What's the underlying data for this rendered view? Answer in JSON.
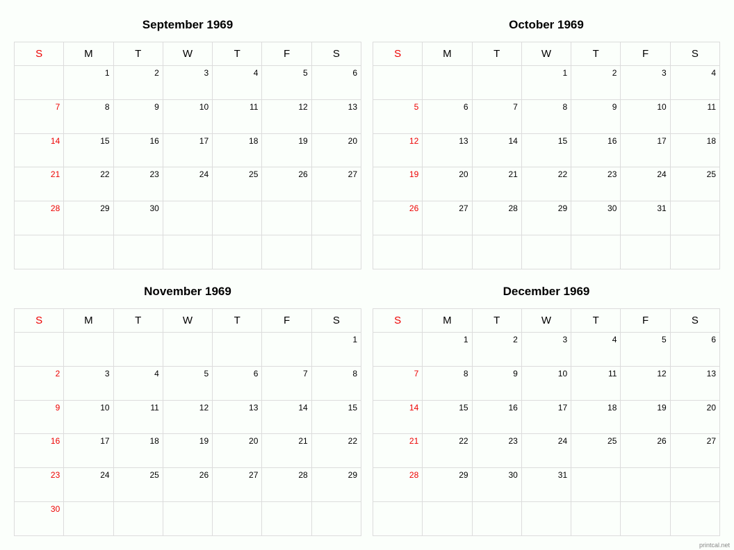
{
  "footer": "printcal.net",
  "dayHeaders": [
    "S",
    "M",
    "T",
    "W",
    "T",
    "F",
    "S"
  ],
  "colors": {
    "background": "#fbfffb",
    "border": "#dcdcdc",
    "text": "#000000",
    "sunday": "#ee0000",
    "footer": "#888888"
  },
  "months": [
    {
      "title": "September 1969",
      "weeks": [
        [
          "",
          "1",
          "2",
          "3",
          "4",
          "5",
          "6"
        ],
        [
          "7",
          "8",
          "9",
          "10",
          "11",
          "12",
          "13"
        ],
        [
          "14",
          "15",
          "16",
          "17",
          "18",
          "19",
          "20"
        ],
        [
          "21",
          "22",
          "23",
          "24",
          "25",
          "26",
          "27"
        ],
        [
          "28",
          "29",
          "30",
          "",
          "",
          "",
          ""
        ],
        [
          "",
          "",
          "",
          "",
          "",
          "",
          ""
        ]
      ]
    },
    {
      "title": "October 1969",
      "weeks": [
        [
          "",
          "",
          "",
          "1",
          "2",
          "3",
          "4"
        ],
        [
          "5",
          "6",
          "7",
          "8",
          "9",
          "10",
          "11"
        ],
        [
          "12",
          "13",
          "14",
          "15",
          "16",
          "17",
          "18"
        ],
        [
          "19",
          "20",
          "21",
          "22",
          "23",
          "24",
          "25"
        ],
        [
          "26",
          "27",
          "28",
          "29",
          "30",
          "31",
          ""
        ],
        [
          "",
          "",
          "",
          "",
          "",
          "",
          ""
        ]
      ]
    },
    {
      "title": "November 1969",
      "weeks": [
        [
          "",
          "",
          "",
          "",
          "",
          "",
          "1"
        ],
        [
          "2",
          "3",
          "4",
          "5",
          "6",
          "7",
          "8"
        ],
        [
          "9",
          "10",
          "11",
          "12",
          "13",
          "14",
          "15"
        ],
        [
          "16",
          "17",
          "18",
          "19",
          "20",
          "21",
          "22"
        ],
        [
          "23",
          "24",
          "25",
          "26",
          "27",
          "28",
          "29"
        ],
        [
          "30",
          "",
          "",
          "",
          "",
          "",
          ""
        ]
      ]
    },
    {
      "title": "December 1969",
      "weeks": [
        [
          "",
          "1",
          "2",
          "3",
          "4",
          "5",
          "6"
        ],
        [
          "7",
          "8",
          "9",
          "10",
          "11",
          "12",
          "13"
        ],
        [
          "14",
          "15",
          "16",
          "17",
          "18",
          "19",
          "20"
        ],
        [
          "21",
          "22",
          "23",
          "24",
          "25",
          "26",
          "27"
        ],
        [
          "28",
          "29",
          "30",
          "31",
          "",
          "",
          ""
        ],
        [
          "",
          "",
          "",
          "",
          "",
          "",
          ""
        ]
      ]
    }
  ]
}
